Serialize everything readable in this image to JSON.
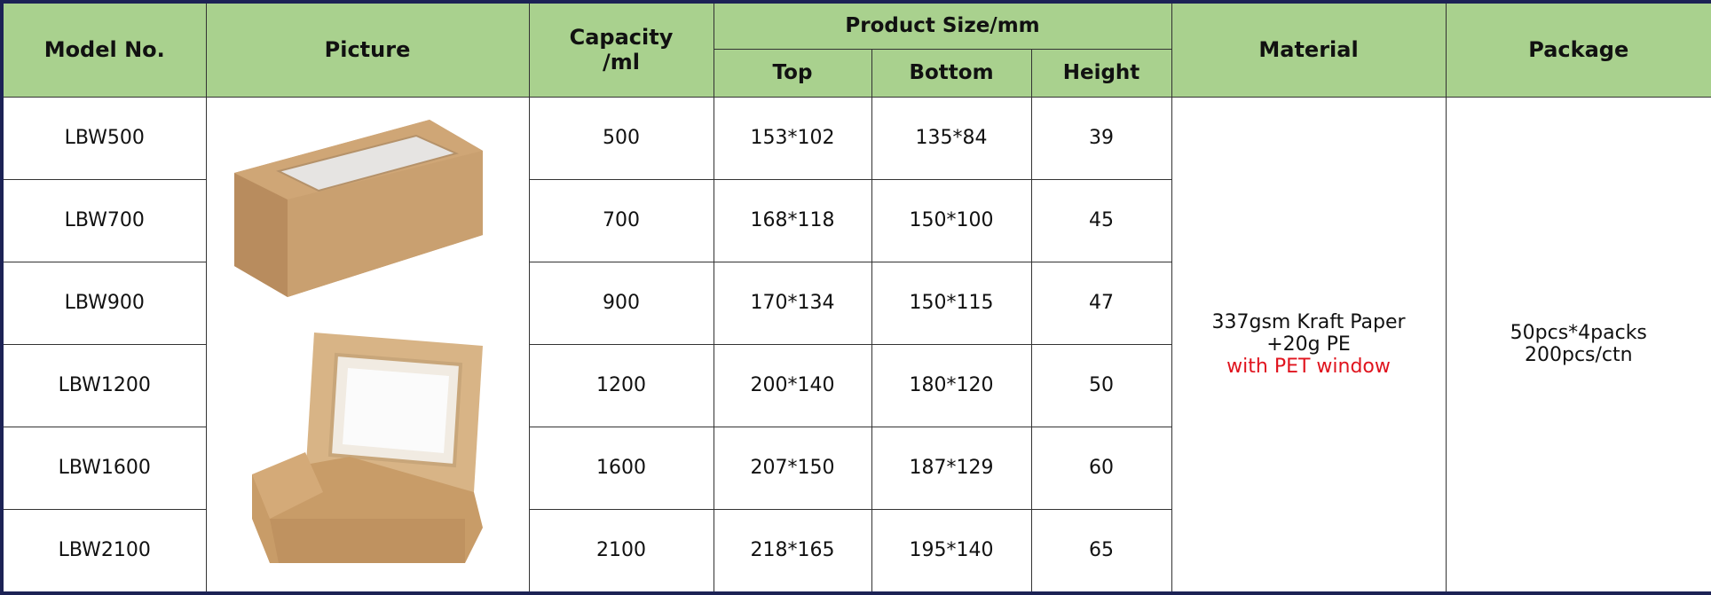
{
  "headers": {
    "model": "Model No.",
    "picture": "Picture",
    "capacity_line1": "Capacity",
    "capacity_line2": "/ml",
    "size": "Product Size/mm",
    "top": "Top",
    "bottom": "Bottom",
    "height": "Height",
    "material": "Material",
    "package": "Package"
  },
  "rows": [
    {
      "model": "LBW500",
      "capacity": "500",
      "top": "153*102",
      "bottom": "135*84",
      "height": "39"
    },
    {
      "model": "LBW700",
      "capacity": "700",
      "top": "168*118",
      "bottom": "150*100",
      "height": "45"
    },
    {
      "model": "LBW900",
      "capacity": "900",
      "top": "170*134",
      "bottom": "150*115",
      "height": "47"
    },
    {
      "model": "LBW1200",
      "capacity": "1200",
      "top": "200*140",
      "bottom": "180*120",
      "height": "50"
    },
    {
      "model": "LBW1600",
      "capacity": "1600",
      "top": "207*150",
      "bottom": "187*129",
      "height": "60"
    },
    {
      "model": "LBW2100",
      "capacity": "2100",
      "top": "218*165",
      "bottom": "195*140",
      "height": "65"
    }
  ],
  "material": {
    "line1": "337gsm Kraft Paper",
    "line2": "+20g PE",
    "line3": "with PET window"
  },
  "package": {
    "line1": "50pcs*4packs",
    "line2": "200pcs/ctn"
  },
  "colors": {
    "header_bg": "#a9d18e",
    "highlight": "#e0141e",
    "border": "#1c2255"
  }
}
